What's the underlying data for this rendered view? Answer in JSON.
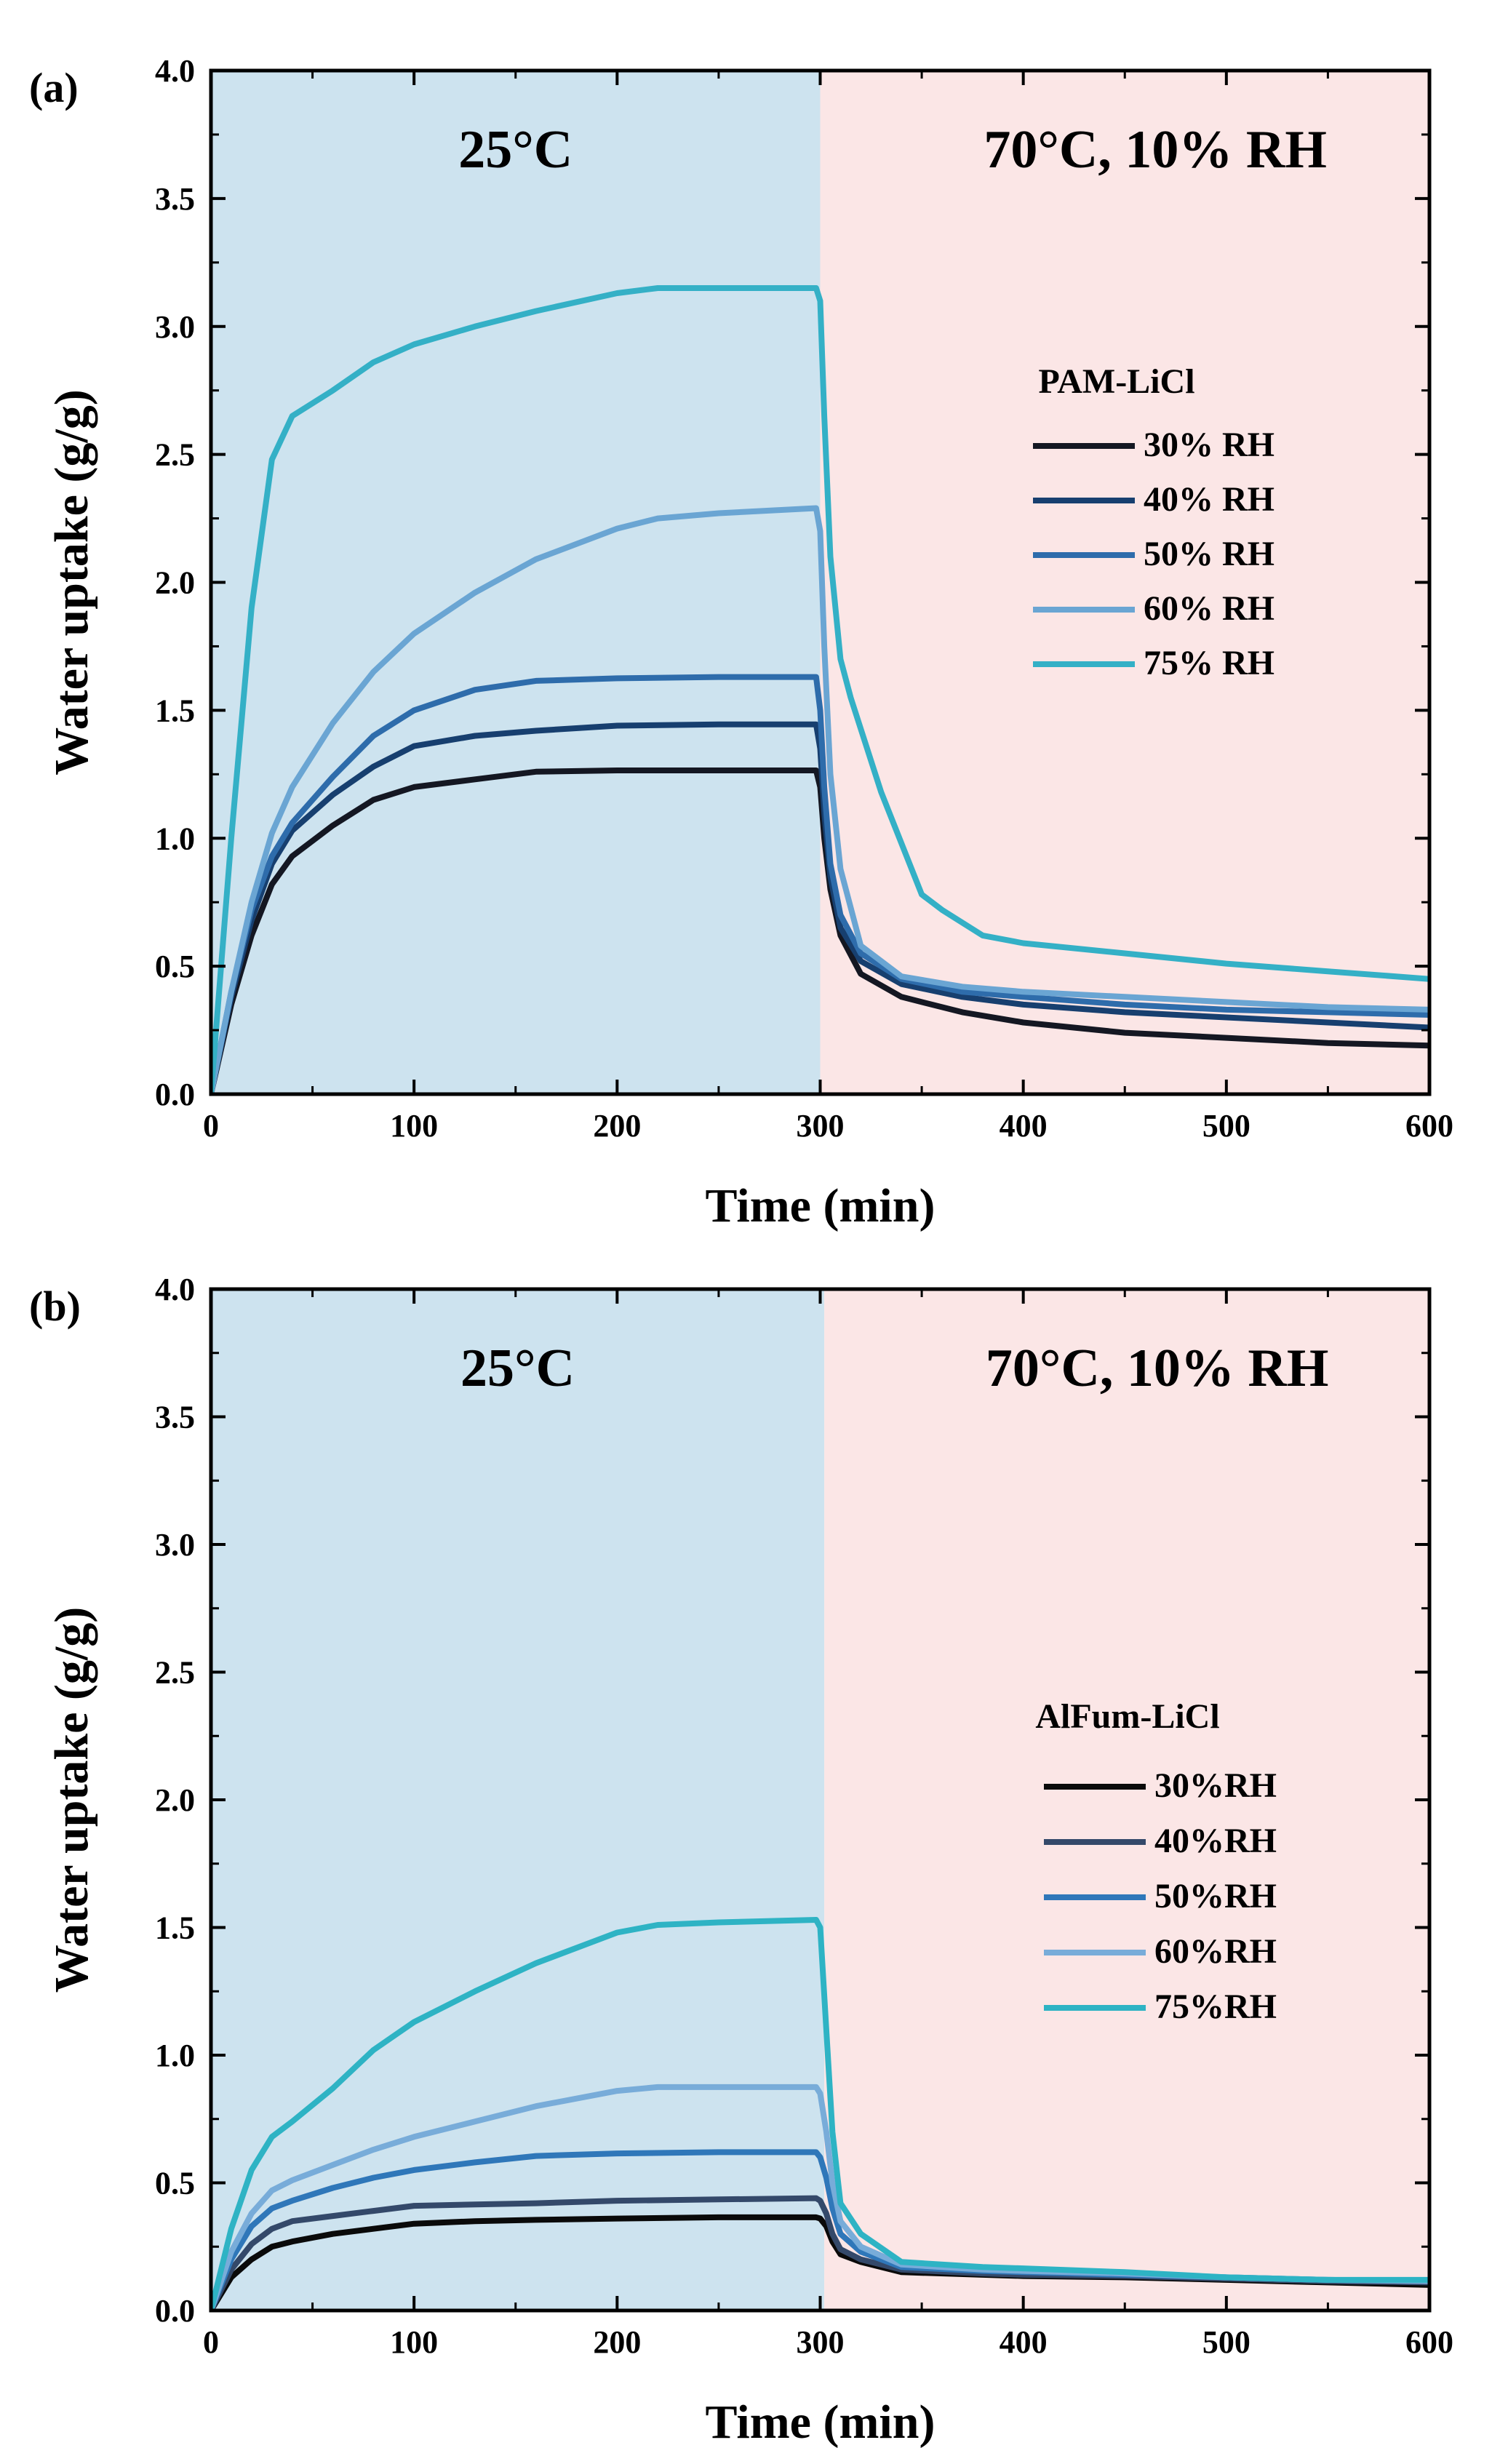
{
  "chart_data": [
    {
      "type": "line",
      "panel_label": "(a)",
      "xlabel": "Time (min)",
      "ylabel": "Water uptake (g/g)",
      "xlim": [
        0,
        600
      ],
      "ylim": [
        0,
        4.0
      ],
      "x_ticks": [
        0,
        100,
        200,
        300,
        400,
        500,
        600
      ],
      "x_tick_labels": [
        "0",
        "100",
        "200",
        "300",
        "400",
        "500",
        "600"
      ],
      "y_ticks": [
        0.0,
        0.5,
        1.0,
        1.5,
        2.0,
        2.5,
        3.0,
        3.5,
        4.0
      ],
      "y_tick_labels": [
        "0.0",
        "0.5",
        "1.0",
        "1.5",
        "2.0",
        "2.5",
        "3.0",
        "3.5",
        "4.0"
      ],
      "regions": [
        {
          "label": "25°C",
          "x_range": [
            0,
            300
          ],
          "color": "#cde3ef"
        },
        {
          "label": "70°C, 10% RH",
          "x_range": [
            300,
            600
          ],
          "color": "#fbe6e6"
        }
      ],
      "legend": {
        "title": "PAM-LiCl",
        "position": "right"
      },
      "series": [
        {
          "name": "30% RH",
          "color": "#141722",
          "x": [
            0,
            10,
            20,
            30,
            40,
            60,
            80,
            100,
            130,
            160,
            200,
            250,
            298,
            300,
            302,
            305,
            310,
            320,
            340,
            370,
            400,
            450,
            500,
            550,
            600
          ],
          "y": [
            0,
            0.35,
            0.62,
            0.82,
            0.93,
            1.05,
            1.15,
            1.2,
            1.23,
            1.26,
            1.265,
            1.265,
            1.265,
            1.2,
            1.0,
            0.8,
            0.62,
            0.47,
            0.38,
            0.32,
            0.28,
            0.24,
            0.22,
            0.2,
            0.19
          ]
        },
        {
          "name": "40% RH",
          "color": "#173f6f",
          "x": [
            0,
            10,
            20,
            30,
            40,
            60,
            80,
            100,
            130,
            160,
            200,
            250,
            298,
            300,
            302,
            305,
            310,
            320,
            340,
            370,
            400,
            450,
            500,
            550,
            600
          ],
          "y": [
            0,
            0.38,
            0.68,
            0.9,
            1.03,
            1.17,
            1.28,
            1.36,
            1.4,
            1.42,
            1.44,
            1.445,
            1.445,
            1.35,
            1.1,
            0.85,
            0.65,
            0.52,
            0.43,
            0.38,
            0.35,
            0.32,
            0.3,
            0.28,
            0.26
          ]
        },
        {
          "name": "50% RH",
          "color": "#2e6cab",
          "x": [
            0,
            10,
            20,
            30,
            40,
            60,
            80,
            100,
            130,
            160,
            200,
            250,
            298,
            300,
            302,
            305,
            310,
            320,
            340,
            370,
            400,
            450,
            500,
            550,
            600
          ],
          "y": [
            0,
            0.4,
            0.72,
            0.93,
            1.06,
            1.24,
            1.4,
            1.5,
            1.58,
            1.615,
            1.625,
            1.63,
            1.63,
            1.5,
            1.2,
            0.9,
            0.7,
            0.55,
            0.45,
            0.4,
            0.38,
            0.35,
            0.33,
            0.32,
            0.31
          ]
        },
        {
          "name": "60% RH",
          "color": "#6aa5d3",
          "x": [
            0,
            10,
            20,
            30,
            40,
            60,
            80,
            100,
            130,
            160,
            200,
            220,
            250,
            298,
            300,
            302,
            305,
            310,
            320,
            340,
            370,
            400,
            450,
            500,
            550,
            600
          ],
          "y": [
            0,
            0.4,
            0.75,
            1.02,
            1.2,
            1.45,
            1.65,
            1.8,
            1.96,
            2.09,
            2.21,
            2.25,
            2.27,
            2.29,
            2.2,
            1.75,
            1.25,
            0.88,
            0.58,
            0.46,
            0.42,
            0.4,
            0.38,
            0.36,
            0.34,
            0.33
          ]
        },
        {
          "name": "75% RH",
          "color": "#34b0c6",
          "x": [
            0,
            10,
            20,
            30,
            40,
            60,
            80,
            100,
            130,
            160,
            200,
            220,
            250,
            298,
            300,
            302,
            305,
            310,
            315,
            330,
            350,
            360,
            380,
            400,
            450,
            500,
            550,
            600
          ],
          "y": [
            0,
            1.0,
            1.9,
            2.48,
            2.65,
            2.75,
            2.86,
            2.93,
            3.0,
            3.06,
            3.13,
            3.15,
            3.15,
            3.15,
            3.1,
            2.65,
            2.1,
            1.7,
            1.55,
            1.18,
            0.78,
            0.72,
            0.62,
            0.59,
            0.55,
            0.51,
            0.48,
            0.45
          ]
        }
      ]
    },
    {
      "type": "line",
      "panel_label": "(b)",
      "xlabel": "Time (min)",
      "ylabel": "Water uptake (g/g)",
      "xlim": [
        0,
        600
      ],
      "ylim": [
        0,
        4.0
      ],
      "x_ticks": [
        0,
        100,
        200,
        300,
        400,
        500,
        600
      ],
      "x_tick_labels": [
        "0",
        "100",
        "200",
        "300",
        "400",
        "500",
        "600"
      ],
      "y_ticks": [
        0.0,
        0.5,
        1.0,
        1.5,
        2.0,
        2.5,
        3.0,
        3.5,
        4.0
      ],
      "y_tick_labels": [
        "0.0",
        "0.5",
        "1.0",
        "1.5",
        "2.0",
        "2.5",
        "3.0",
        "3.5",
        "4.0"
      ],
      "regions": [
        {
          "label": "25°C",
          "x_range": [
            0,
            302
          ],
          "color": "#cde3ef"
        },
        {
          "label": "70°C, 10% RH",
          "x_range": [
            302,
            600
          ],
          "color": "#fbe6e6"
        }
      ],
      "legend": {
        "title": "AlFum-LiCl",
        "position": "right"
      },
      "series": [
        {
          "name": "30%RH",
          "color": "#0a0a0a",
          "x": [
            0,
            10,
            20,
            30,
            40,
            60,
            80,
            100,
            130,
            160,
            200,
            250,
            298,
            300,
            303,
            306,
            310,
            320,
            340,
            380,
            400,
            450,
            500,
            550,
            600
          ],
          "y": [
            0,
            0.13,
            0.2,
            0.25,
            0.27,
            0.3,
            0.32,
            0.34,
            0.35,
            0.355,
            0.36,
            0.365,
            0.365,
            0.36,
            0.33,
            0.27,
            0.22,
            0.19,
            0.15,
            0.14,
            0.135,
            0.13,
            0.12,
            0.11,
            0.1
          ]
        },
        {
          "name": "40%RH",
          "color": "#34496a",
          "x": [
            0,
            10,
            20,
            30,
            40,
            60,
            80,
            100,
            130,
            160,
            200,
            250,
            298,
            300,
            303,
            306,
            310,
            320,
            340,
            380,
            400,
            450,
            500,
            550,
            600
          ],
          "y": [
            0,
            0.16,
            0.26,
            0.32,
            0.35,
            0.37,
            0.39,
            0.41,
            0.415,
            0.42,
            0.43,
            0.435,
            0.44,
            0.43,
            0.38,
            0.3,
            0.24,
            0.2,
            0.16,
            0.145,
            0.14,
            0.135,
            0.125,
            0.115,
            0.11
          ]
        },
        {
          "name": "50%RH",
          "color": "#2f77b9",
          "x": [
            0,
            10,
            20,
            30,
            40,
            60,
            80,
            100,
            130,
            160,
            200,
            250,
            298,
            300,
            303,
            306,
            310,
            320,
            340,
            380,
            400,
            450,
            500,
            550,
            600
          ],
          "y": [
            0,
            0.2,
            0.33,
            0.4,
            0.43,
            0.48,
            0.52,
            0.55,
            0.58,
            0.605,
            0.615,
            0.62,
            0.62,
            0.6,
            0.52,
            0.4,
            0.3,
            0.23,
            0.17,
            0.155,
            0.15,
            0.14,
            0.13,
            0.12,
            0.115
          ]
        },
        {
          "name": "60%RH",
          "color": "#78acd9",
          "x": [
            0,
            10,
            20,
            30,
            40,
            60,
            80,
            100,
            130,
            160,
            200,
            220,
            250,
            298,
            300,
            303,
            306,
            310,
            320,
            340,
            380,
            400,
            450,
            500,
            550,
            600
          ],
          "y": [
            0,
            0.23,
            0.38,
            0.47,
            0.51,
            0.57,
            0.63,
            0.68,
            0.74,
            0.8,
            0.86,
            0.875,
            0.875,
            0.875,
            0.85,
            0.7,
            0.5,
            0.35,
            0.25,
            0.18,
            0.16,
            0.155,
            0.145,
            0.13,
            0.12,
            0.115
          ]
        },
        {
          "name": "75%RH",
          "color": "#2eb3c4",
          "x": [
            0,
            10,
            20,
            30,
            40,
            60,
            80,
            100,
            130,
            160,
            200,
            220,
            250,
            298,
            300,
            303,
            306,
            310,
            320,
            340,
            380,
            400,
            450,
            500,
            550,
            600
          ],
          "y": [
            0,
            0.32,
            0.55,
            0.68,
            0.74,
            0.87,
            1.02,
            1.13,
            1.25,
            1.36,
            1.48,
            1.51,
            1.52,
            1.53,
            1.5,
            1.1,
            0.7,
            0.42,
            0.3,
            0.19,
            0.17,
            0.165,
            0.15,
            0.13,
            0.12,
            0.12
          ]
        }
      ]
    }
  ]
}
